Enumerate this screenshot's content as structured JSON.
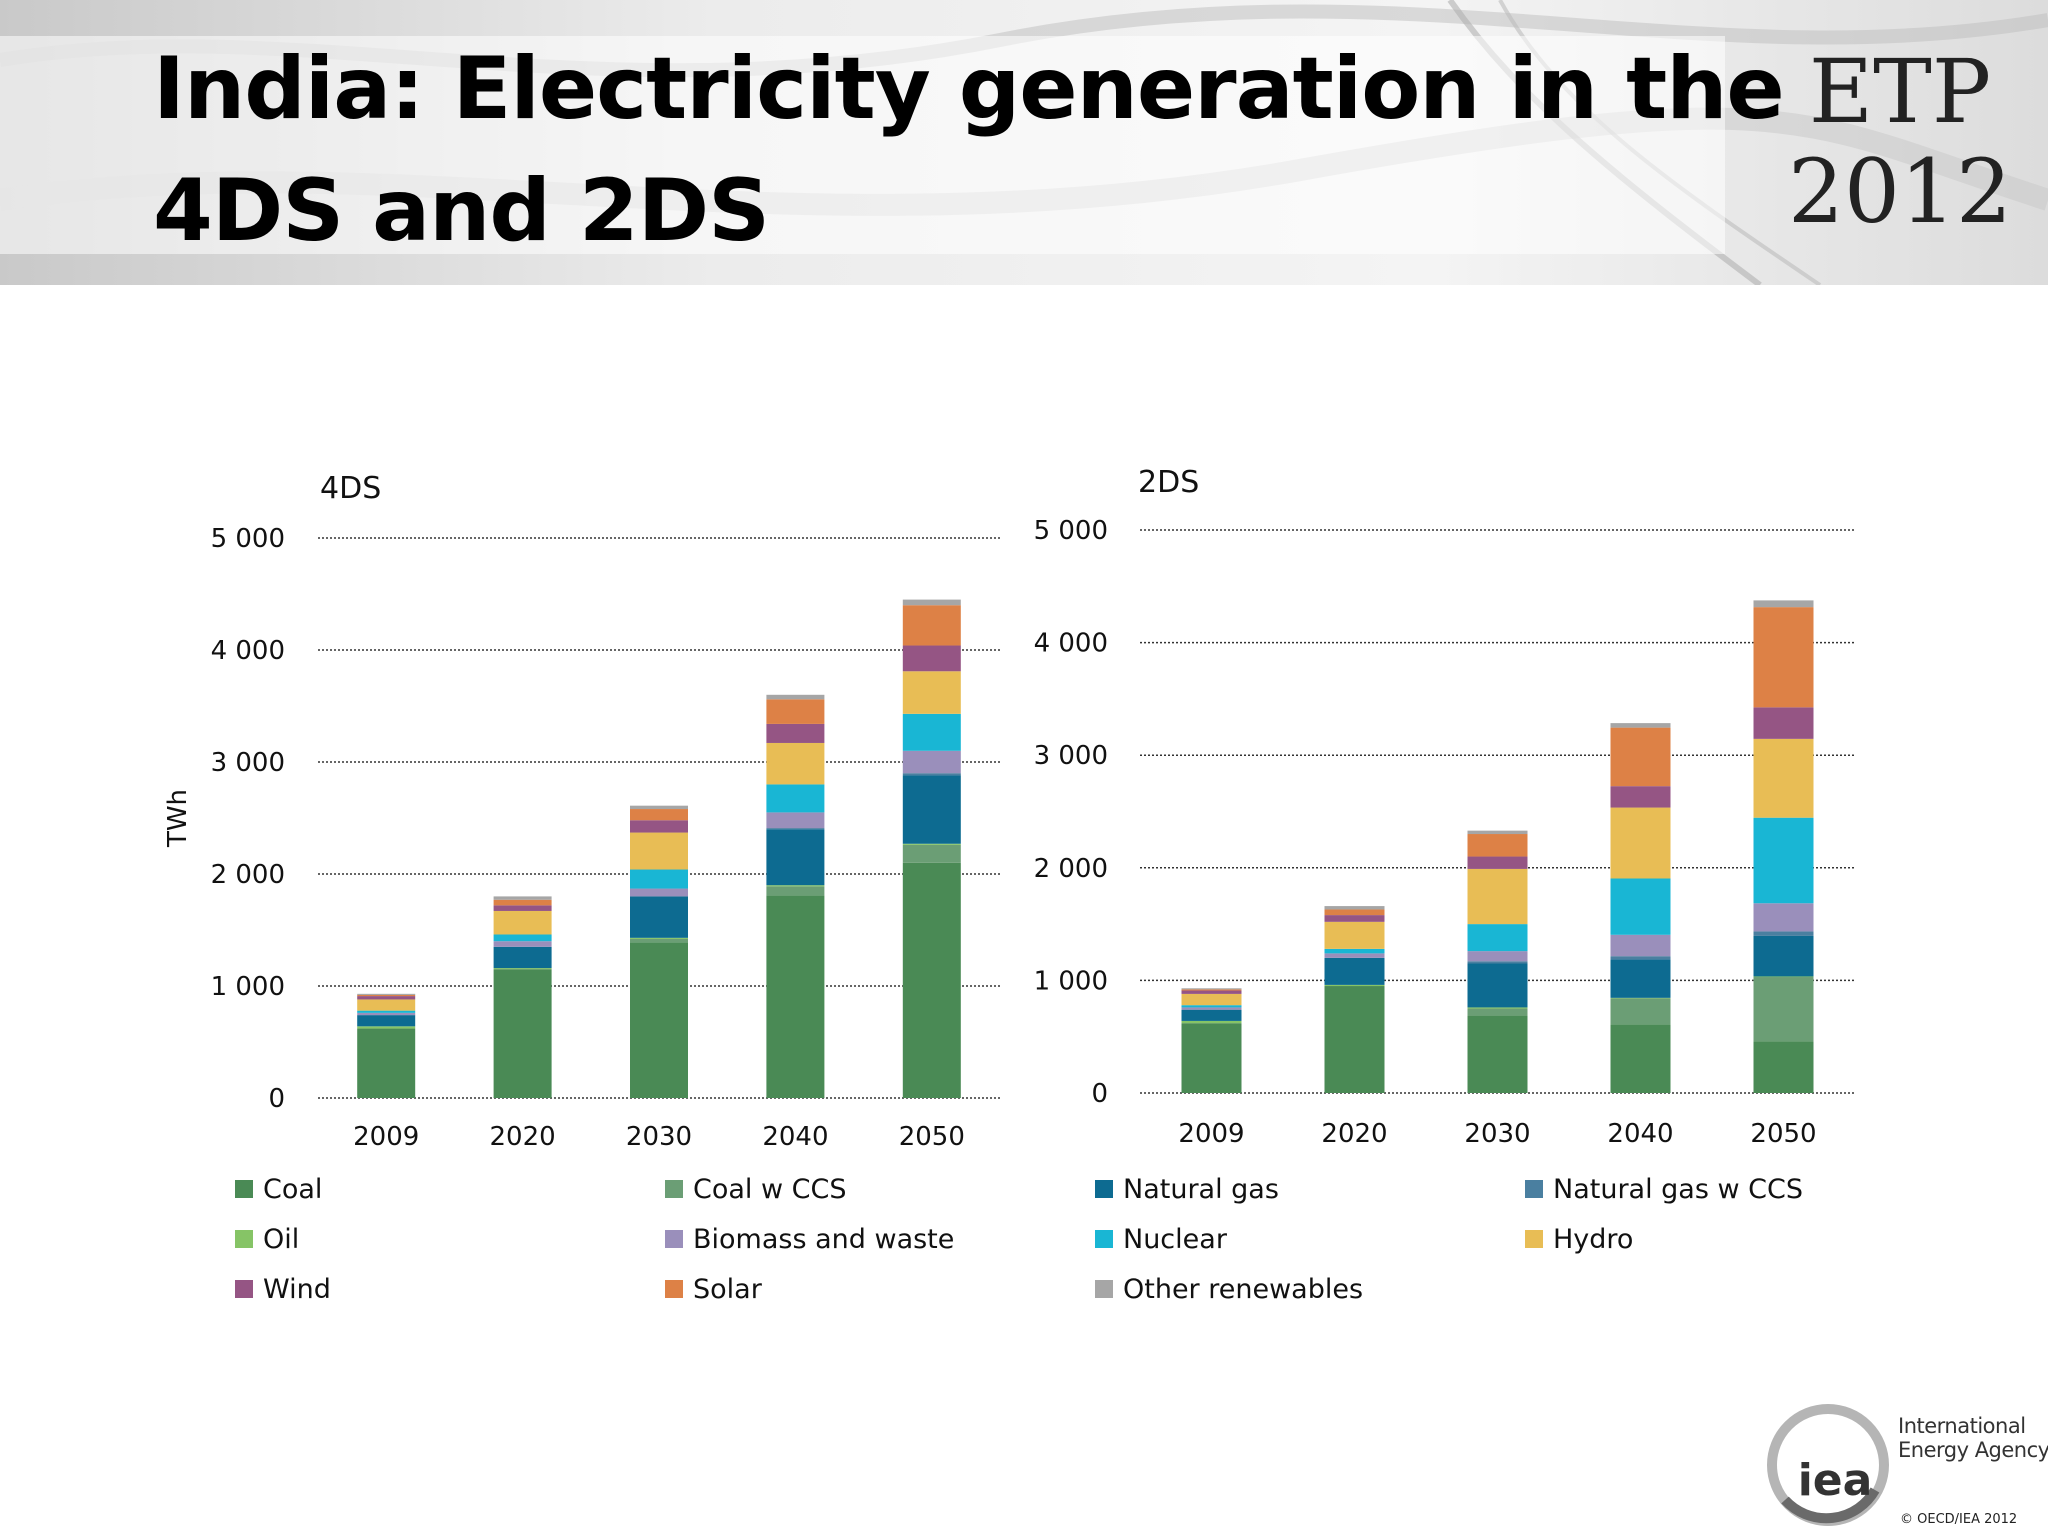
{
  "header": {
    "title_line1": "India: Electricity generation in the",
    "title_line2": "4DS and 2DS",
    "logo_line1": "ETP",
    "logo_line2": "2012"
  },
  "chart_data": [
    {
      "type": "bar",
      "stacked": true,
      "title": "4DS",
      "ylabel": "TWh",
      "xlabel": "",
      "ylim": [
        0,
        5000
      ],
      "yticks": [
        "0",
        "1 000",
        "2 000",
        "3 000",
        "4 000",
        "5 000"
      ],
      "categories": [
        "2009",
        "2020",
        "2030",
        "2040",
        "2050"
      ],
      "grid": "horizontal dotted",
      "series": [
        {
          "name": "Coal",
          "values": [
            620,
            1150,
            1390,
            1810,
            2100
          ]
        },
        {
          "name": "Coal w CCS",
          "values": [
            0,
            0,
            30,
            80,
            160
          ]
        },
        {
          "name": "Oil",
          "values": [
            20,
            10,
            10,
            10,
            10
          ]
        },
        {
          "name": "Natural gas",
          "values": [
            100,
            190,
            370,
            500,
            610
          ]
        },
        {
          "name": "Natural gas w CCS",
          "values": [
            0,
            0,
            0,
            10,
            20
          ]
        },
        {
          "name": "Biomass and waste",
          "values": [
            20,
            50,
            70,
            140,
            200
          ]
        },
        {
          "name": "Nuclear",
          "values": [
            20,
            60,
            170,
            250,
            330
          ]
        },
        {
          "name": "Hydro",
          "values": [
            100,
            210,
            330,
            370,
            380
          ]
        },
        {
          "name": "Wind",
          "values": [
            30,
            50,
            110,
            170,
            230
          ]
        },
        {
          "name": "Solar",
          "values": [
            10,
            50,
            100,
            220,
            360
          ]
        },
        {
          "name": "Other renewables",
          "values": [
            10,
            30,
            30,
            40,
            50
          ]
        }
      ]
    },
    {
      "type": "bar",
      "stacked": true,
      "title": "2DS",
      "ylabel": "",
      "xlabel": "",
      "ylim": [
        0,
        5000
      ],
      "yticks": [
        "0",
        "1 000",
        "2 000",
        "3 000",
        "4 000",
        "5 000"
      ],
      "categories": [
        "2009",
        "2020",
        "2030",
        "2040",
        "2050"
      ],
      "grid": "horizontal dotted",
      "series": [
        {
          "name": "Coal",
          "values": [
            620,
            950,
            690,
            610,
            460
          ]
        },
        {
          "name": "Coal w CCS",
          "values": [
            0,
            0,
            60,
            230,
            570
          ]
        },
        {
          "name": "Oil",
          "values": [
            20,
            10,
            10,
            5,
            5
          ]
        },
        {
          "name": "Natural gas",
          "values": [
            100,
            240,
            390,
            340,
            360
          ]
        },
        {
          "name": "Natural gas w CCS",
          "values": [
            0,
            0,
            20,
            30,
            40
          ]
        },
        {
          "name": "Biomass and waste",
          "values": [
            20,
            40,
            90,
            190,
            250
          ]
        },
        {
          "name": "Nuclear",
          "values": [
            20,
            40,
            240,
            500,
            760
          ]
        },
        {
          "name": "Hydro",
          "values": [
            100,
            240,
            490,
            630,
            700
          ]
        },
        {
          "name": "Wind",
          "values": [
            30,
            60,
            110,
            190,
            280
          ]
        },
        {
          "name": "Solar",
          "values": [
            10,
            50,
            200,
            520,
            890
          ]
        },
        {
          "name": "Other renewables",
          "values": [
            10,
            30,
            30,
            40,
            60
          ]
        }
      ]
    }
  ],
  "colors": {
    "Coal": "#4a8a55",
    "Coal w CCS": "#6b9e75",
    "Oil": "#86c466",
    "Natural gas": "#0d6b91",
    "Natural gas w CCS": "#4a7fa0",
    "Biomass and waste": "#9a8fbb",
    "Nuclear": "#19b6d4",
    "Hydro": "#e8bd55",
    "Wind": "#955584",
    "Solar": "#dd8146",
    "Other renewables": "#a6a6a6"
  },
  "legend": {
    "items": [
      "Coal",
      "Coal w CCS",
      "Natural gas",
      "Natural gas w CCS",
      "Oil",
      "Biomass and waste",
      "Nuclear",
      "Hydro",
      "Wind",
      "Solar",
      "Other renewables"
    ]
  },
  "footer": {
    "org_line1": "International",
    "org_line2": "Energy Agency",
    "org_abbrev": "iea",
    "copyright": "© OECD/IEA 2012"
  }
}
